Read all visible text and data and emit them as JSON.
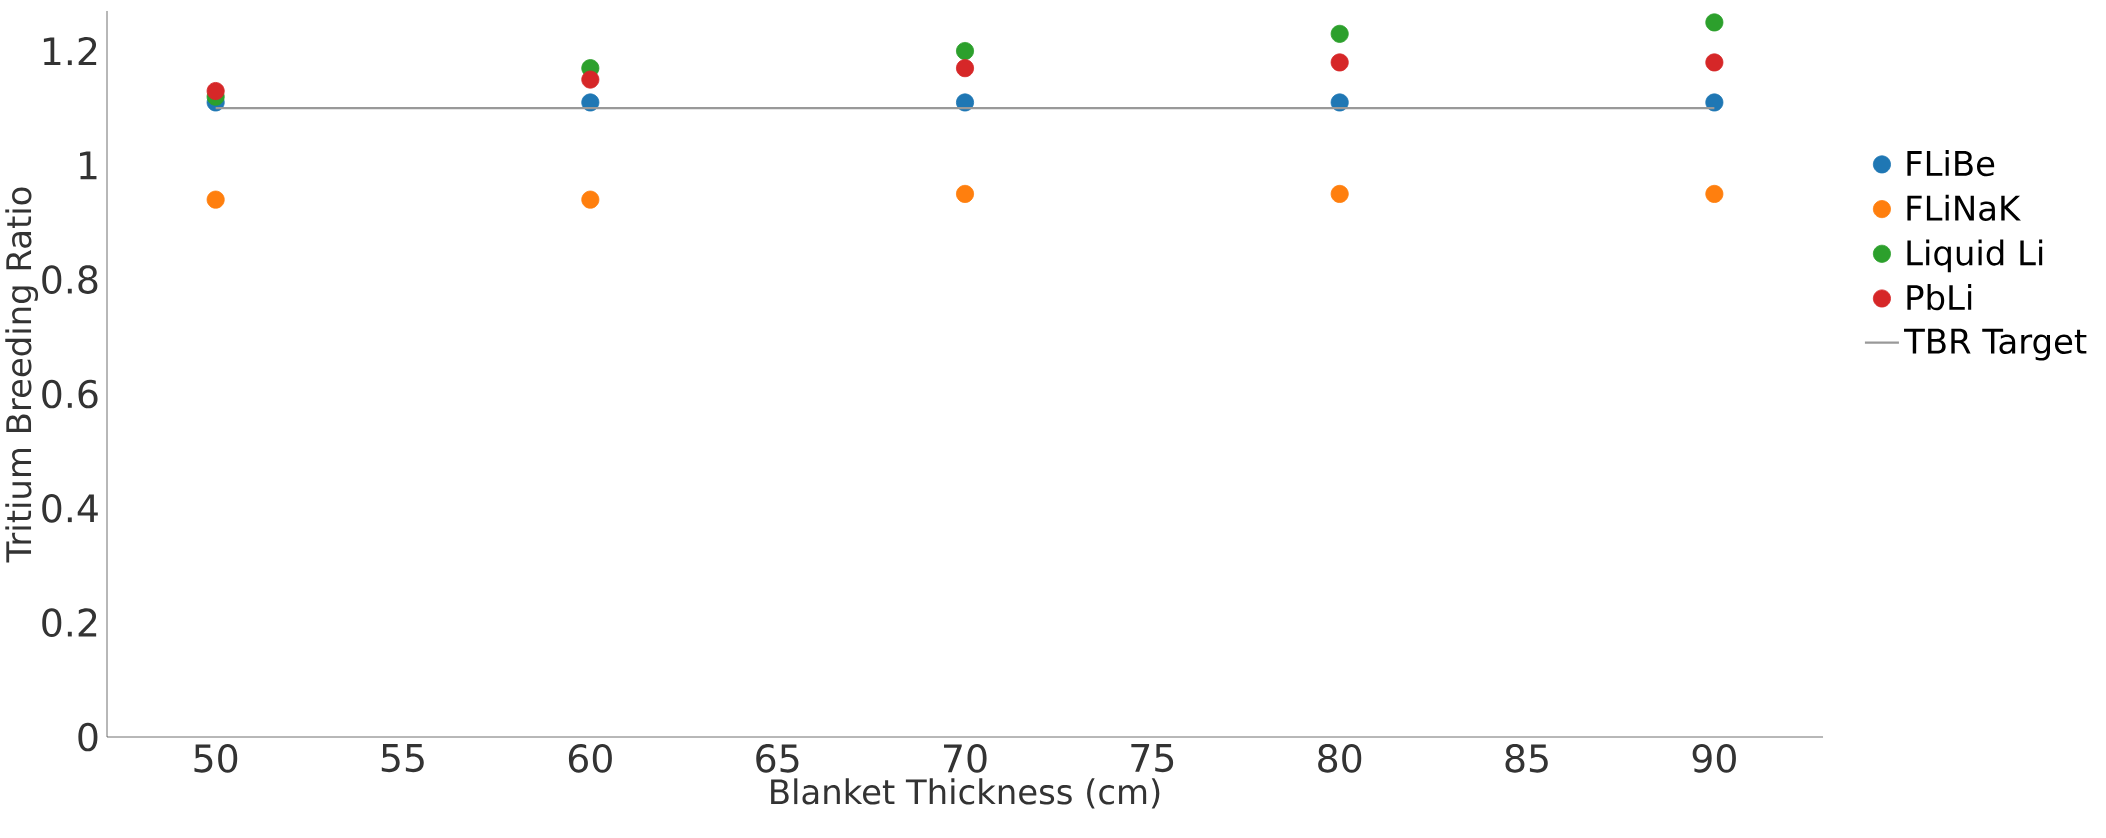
{
  "chart_data": {
    "type": "scatter",
    "xlabel": "Blanket Thickness (cm)",
    "ylabel": "Tritium Breeding Ratio",
    "x": [
      50,
      60,
      70,
      80,
      90
    ],
    "series": [
      {
        "name": "FLiBe",
        "marker": "circle",
        "color": "#1f77b4",
        "values": [
          1.11,
          1.11,
          1.11,
          1.11,
          1.11
        ]
      },
      {
        "name": "FLiNaK",
        "marker": "circle",
        "color": "#ff7f0e",
        "values": [
          0.94,
          0.94,
          0.95,
          0.95,
          0.95
        ]
      },
      {
        "name": "Liquid Li",
        "marker": "circle",
        "color": "#2ca02c",
        "values": [
          1.12,
          1.17,
          1.2,
          1.23,
          1.25
        ]
      },
      {
        "name": "PbLi",
        "marker": "circle",
        "color": "#d62728",
        "values": [
          1.13,
          1.15,
          1.17,
          1.18,
          1.18
        ]
      },
      {
        "name": "TBR Target",
        "type": "line",
        "marker": "none",
        "color": "#999999",
        "x": [
          50,
          90
        ],
        "values": [
          1.1,
          1.1
        ]
      }
    ],
    "xlim": [
      47.1,
      92.9
    ],
    "ylim": [
      0,
      1.27
    ],
    "xticks": [
      50,
      55,
      60,
      65,
      70,
      75,
      80,
      85,
      90
    ],
    "yticks": [
      0,
      0.2,
      0.4,
      0.6,
      0.8,
      1,
      1.2
    ],
    "grid": false,
    "legend": "right"
  }
}
